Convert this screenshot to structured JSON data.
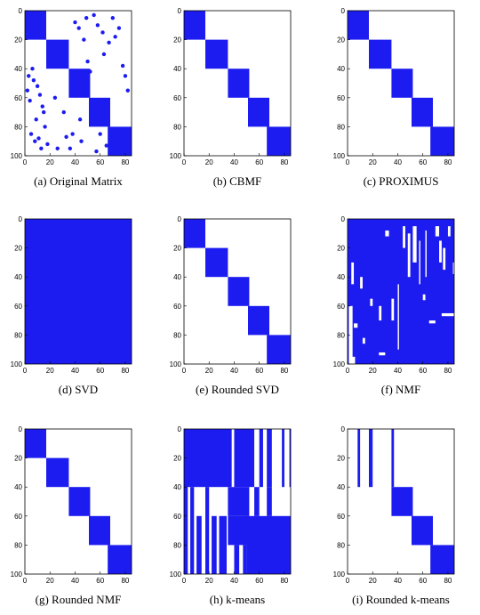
{
  "chart_data": [
    {
      "type": "spy",
      "title": "(a) Original Matrix",
      "xlim": [
        0,
        85
      ],
      "ylim": [
        0,
        100
      ],
      "y_inverted": true,
      "xticks": [
        0,
        20,
        40,
        60,
        80
      ],
      "yticks": [
        0,
        20,
        40,
        60,
        80,
        100
      ],
      "color": "#1c1cf0",
      "blocks": [
        [
          0,
          17,
          0,
          20
        ],
        [
          17,
          35,
          20,
          40
        ],
        [
          35,
          52,
          40,
          60
        ],
        [
          51,
          68,
          60,
          80
        ],
        [
          66,
          85,
          80,
          100
        ]
      ],
      "points": {
        "x": [
          3,
          7,
          10,
          12,
          15,
          5,
          8,
          13,
          4,
          9,
          16,
          11,
          6,
          14,
          2,
          18,
          22,
          25,
          28,
          31,
          40,
          43,
          47,
          49,
          55,
          58,
          62,
          63,
          67,
          70,
          72,
          75,
          78,
          80,
          82,
          36,
          38,
          45,
          52,
          57,
          60,
          65,
          24,
          26,
          33,
          44,
          50
        ],
        "y": [
          45,
          48,
          52,
          58,
          70,
          85,
          90,
          95,
          62,
          75,
          80,
          88,
          40,
          66,
          55,
          92,
          30,
          35,
          28,
          70,
          8,
          12,
          20,
          5,
          3,
          10,
          15,
          30,
          22,
          5,
          18,
          12,
          38,
          45,
          55,
          95,
          85,
          90,
          42,
          97,
          85,
          93,
          60,
          95,
          87,
          75,
          35
        ]
      }
    },
    {
      "type": "spy",
      "title": "(b) CBMF",
      "xlim": [
        0,
        85
      ],
      "ylim": [
        0,
        100
      ],
      "y_inverted": true,
      "xticks": [
        0,
        20,
        40,
        60,
        80
      ],
      "yticks": [
        0,
        20,
        40,
        60,
        80,
        100
      ],
      "color": "#1c1cf0",
      "blocks": [
        [
          0,
          17,
          0,
          20
        ],
        [
          17,
          35,
          20,
          40
        ],
        [
          35,
          52,
          40,
          60
        ],
        [
          51,
          68,
          60,
          80
        ],
        [
          66,
          85,
          80,
          100
        ]
      ]
    },
    {
      "type": "spy",
      "title": "(c) PROXIMUS",
      "xlim": [
        0,
        85
      ],
      "ylim": [
        0,
        100
      ],
      "y_inverted": true,
      "xticks": [
        0,
        20,
        40,
        60,
        80
      ],
      "yticks": [
        0,
        20,
        40,
        60,
        80,
        100
      ],
      "color": "#1c1cf0",
      "blocks": [
        [
          0,
          17,
          0,
          20
        ],
        [
          17,
          35,
          20,
          40
        ],
        [
          35,
          52,
          40,
          60
        ],
        [
          51,
          68,
          60,
          80
        ],
        [
          66,
          85,
          80,
          100
        ]
      ]
    },
    {
      "type": "spy",
      "title": "(d) SVD",
      "xlim": [
        0,
        85
      ],
      "ylim": [
        0,
        100
      ],
      "y_inverted": true,
      "xticks": [
        0,
        20,
        40,
        60,
        80
      ],
      "yticks": [
        0,
        20,
        40,
        60,
        80,
        100
      ],
      "color": "#1c1cf0",
      "blocks": [
        [
          0,
          85,
          0,
          100
        ]
      ]
    },
    {
      "type": "spy",
      "title": "(e) Rounded SVD",
      "xlim": [
        0,
        85
      ],
      "ylim": [
        0,
        100
      ],
      "y_inverted": true,
      "xticks": [
        0,
        20,
        40,
        60,
        80
      ],
      "yticks": [
        0,
        20,
        40,
        60,
        80,
        100
      ],
      "color": "#1c1cf0",
      "blocks": [
        [
          0,
          17,
          0,
          20
        ],
        [
          17,
          35,
          20,
          40
        ],
        [
          35,
          52,
          40,
          60
        ],
        [
          51,
          68,
          60,
          80
        ],
        [
          66,
          85,
          80,
          100
        ]
      ]
    },
    {
      "type": "spy",
      "title": "(f) NMF",
      "xlim": [
        0,
        85
      ],
      "ylim": [
        0,
        100
      ],
      "y_inverted": true,
      "xticks": [
        0,
        20,
        40,
        60,
        80
      ],
      "yticks": [
        0,
        20,
        40,
        60,
        80,
        100
      ],
      "color": "#1c1cf0",
      "blocks": [
        [
          0,
          85,
          0,
          100
        ]
      ],
      "gaps": [
        [
          1,
          4,
          60,
          100
        ],
        [
          3,
          5,
          30,
          45
        ],
        [
          10,
          12,
          40,
          48
        ],
        [
          30,
          33,
          8,
          12
        ],
        [
          44,
          46,
          5,
          20
        ],
        [
          48,
          50,
          10,
          40
        ],
        [
          52,
          55,
          5,
          30
        ],
        [
          57,
          58,
          15,
          45
        ],
        [
          62,
          63,
          8,
          40
        ],
        [
          70,
          73,
          5,
          12
        ],
        [
          73,
          75,
          15,
          30
        ],
        [
          76,
          78,
          20,
          35
        ],
        [
          80,
          82,
          5,
          12
        ],
        [
          84,
          85,
          30,
          38
        ],
        [
          18,
          20,
          55,
          60
        ],
        [
          25,
          27,
          60,
          70
        ],
        [
          35,
          37,
          55,
          70
        ],
        [
          40,
          41,
          45,
          90
        ],
        [
          60,
          62,
          52,
          56
        ],
        [
          65,
          70,
          70,
          72
        ],
        [
          75,
          85,
          65,
          67
        ],
        [
          5,
          8,
          72,
          75
        ],
        [
          12,
          14,
          82,
          86
        ],
        [
          25,
          30,
          92,
          94
        ],
        [
          3,
          6,
          95,
          100
        ]
      ]
    },
    {
      "type": "spy",
      "title": "(g) Rounded NMF",
      "xlim": [
        0,
        85
      ],
      "ylim": [
        0,
        100
      ],
      "y_inverted": true,
      "xticks": [
        0,
        20,
        40,
        60,
        80
      ],
      "yticks": [
        0,
        20,
        40,
        60,
        80,
        100
      ],
      "color": "#1c1cf0",
      "blocks": [
        [
          0,
          17,
          0,
          20
        ],
        [
          17,
          35,
          20,
          40
        ],
        [
          35,
          52,
          40,
          60
        ],
        [
          51,
          68,
          60,
          80
        ],
        [
          66,
          85,
          80,
          100
        ]
      ]
    },
    {
      "type": "spy",
      "title": "(h) k-means",
      "xlim": [
        0,
        85
      ],
      "ylim": [
        0,
        100
      ],
      "y_inverted": true,
      "xticks": [
        0,
        20,
        40,
        60,
        80
      ],
      "yticks": [
        0,
        20,
        40,
        60,
        80,
        100
      ],
      "color": "#1c1cf0",
      "blocks": [
        [
          0,
          38,
          0,
          40
        ],
        [
          40,
          56,
          0,
          40
        ],
        [
          60,
          63,
          0,
          40
        ],
        [
          66,
          70,
          0,
          40
        ],
        [
          78,
          80,
          0,
          40
        ],
        [
          84,
          85,
          0,
          40
        ],
        [
          35,
          52,
          40,
          60
        ],
        [
          0,
          3,
          40,
          100
        ],
        [
          5,
          8,
          40,
          100
        ],
        [
          10,
          14,
          60,
          100
        ],
        [
          17,
          20,
          40,
          100
        ],
        [
          22,
          26,
          60,
          100
        ],
        [
          28,
          34,
          60,
          100
        ],
        [
          35,
          52,
          60,
          80
        ],
        [
          40,
          44,
          80,
          100
        ],
        [
          50,
          85,
          60,
          100
        ],
        [
          47,
          50,
          80,
          100
        ],
        [
          56,
          60,
          40,
          60
        ],
        [
          66,
          70,
          40,
          60
        ]
      ]
    },
    {
      "type": "spy",
      "title": "(i) Rounded k-means",
      "xlim": [
        0,
        85
      ],
      "ylim": [
        0,
        100
      ],
      "y_inverted": true,
      "xticks": [
        0,
        20,
        40,
        60,
        80
      ],
      "yticks": [
        0,
        20,
        40,
        60,
        80,
        100
      ],
      "color": "#1c1cf0",
      "blocks": [
        [
          8,
          10,
          0,
          40
        ],
        [
          17,
          20,
          0,
          40
        ],
        [
          35,
          37,
          0,
          40
        ],
        [
          35,
          52,
          40,
          60
        ],
        [
          51,
          68,
          60,
          80
        ],
        [
          66,
          85,
          80,
          100
        ]
      ]
    }
  ]
}
